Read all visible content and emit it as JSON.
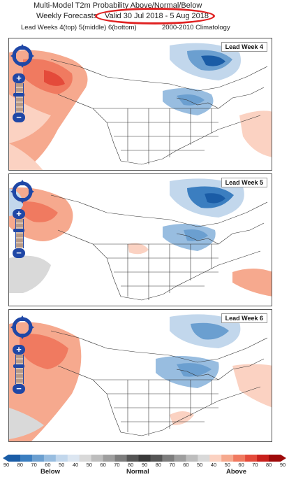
{
  "header": {
    "title": "Multi-Model T2m Probability Above/Normal/Below",
    "weekly_label": "Weekly Forecasts",
    "valid_label": "Valid 30 Jul 2018 - 5 Aug 2018",
    "lead_info": "Lead Weeks 4(top) 5(middle) 6(bottom)",
    "climatology": "2000-2010 Climatology"
  },
  "panels": [
    {
      "label": "Lead Week 4"
    },
    {
      "label": "Lead Week 5"
    },
    {
      "label": "Lead Week 6"
    }
  ],
  "legend": {
    "ticks": [
      "90",
      "80",
      "70",
      "60",
      "50",
      "40",
      "50",
      "60",
      "70",
      "80",
      "90",
      "80",
      "70",
      "60",
      "50",
      "40",
      "50",
      "60",
      "70",
      "80",
      "90"
    ],
    "below": "Below",
    "normal": "Normal",
    "above": "Above"
  },
  "colors": {
    "below": [
      "#1a5ca6",
      "#3b7ec0",
      "#6b9fd0",
      "#98bde0",
      "#c2d7ec",
      "#dce6f1"
    ],
    "normal": [
      "#d9d9d9",
      "#bdbdbd",
      "#9e9e9e",
      "#7d7d7d",
      "#555555",
      "#3a3a3a",
      "#555555",
      "#7d7d7d",
      "#9e9e9e",
      "#bdbdbd",
      "#d9d9d9"
    ],
    "above": [
      "#fbd2c2",
      "#f6a98e",
      "#f07a60",
      "#e44a3a",
      "#c8201c",
      "#9e0a0a"
    ],
    "highlight": "#e02020"
  }
}
